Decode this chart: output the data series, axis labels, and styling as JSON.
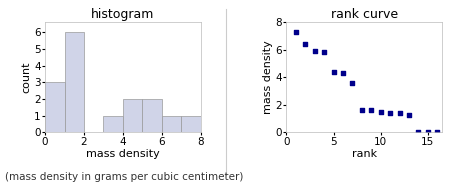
{
  "hist_title": "histogram",
  "hist_xlabel": "mass density",
  "hist_ylabel": "count",
  "hist_bar_color": "#d0d4e8",
  "hist_edge_color": "#999999",
  "hist_counts": [
    3,
    6,
    0,
    1,
    2,
    2,
    1,
    1
  ],
  "hist_bin_edges": [
    0,
    1,
    2,
    3,
    4,
    5,
    6,
    7,
    8
  ],
  "hist_xlim": [
    0,
    8
  ],
  "hist_ylim": [
    0,
    6.6
  ],
  "hist_xticks": [
    0,
    2,
    4,
    6,
    8
  ],
  "hist_yticks": [
    0,
    1,
    2,
    3,
    4,
    5,
    6
  ],
  "rank_title": "rank curve",
  "rank_xlabel": "rank",
  "rank_ylabel": "mass density",
  "rank_x": [
    1,
    2,
    3,
    4,
    5,
    6,
    7,
    8,
    9,
    10,
    11,
    12,
    13,
    14,
    15,
    16
  ],
  "rank_y": [
    7.3,
    6.4,
    5.9,
    5.8,
    4.4,
    4.3,
    3.6,
    1.6,
    1.6,
    1.5,
    1.4,
    1.4,
    1.3,
    0.05,
    0.02,
    0.01
  ],
  "rank_marker_color": "#00008b",
  "rank_marker": "s",
  "rank_marker_size": 8,
  "rank_xlim": [
    0,
    16.5
  ],
  "rank_ylim": [
    0,
    8
  ],
  "rank_xticks": [
    0,
    5,
    10,
    15
  ],
  "rank_yticks": [
    0,
    2,
    4,
    6,
    8
  ],
  "caption": "(mass density in grams per cubic centimeter)",
  "caption_fontsize": 7.5,
  "background_color": "#ffffff",
  "axes_bg_color": "#ffffff",
  "title_fontsize": 9,
  "label_fontsize": 8,
  "tick_fontsize": 7.5
}
